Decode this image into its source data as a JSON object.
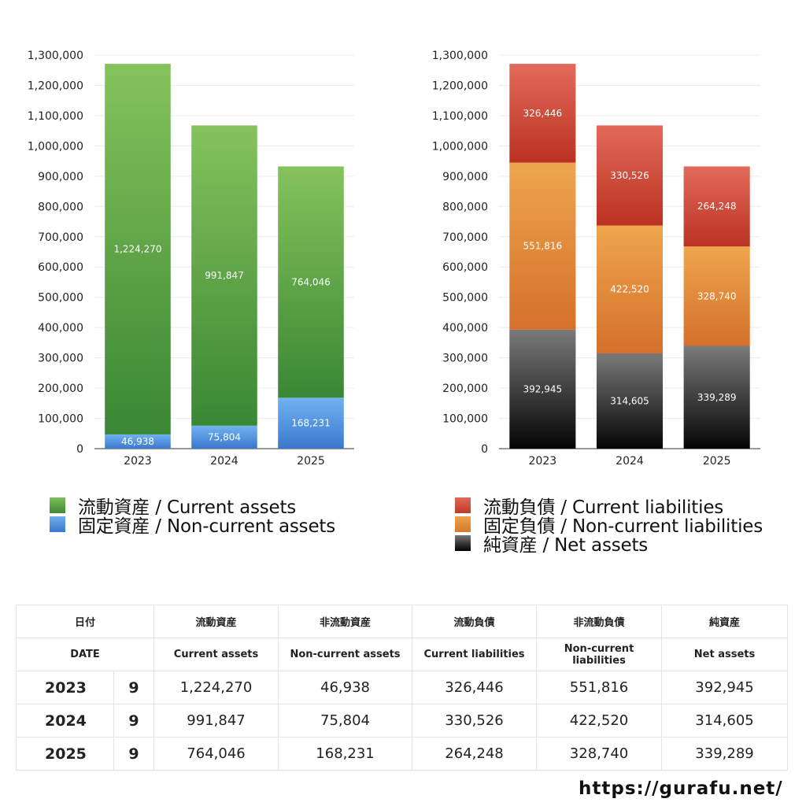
{
  "chart_data": [
    {
      "type": "bar",
      "stacked": true,
      "categories": [
        "2023",
        "2024",
        "2025"
      ],
      "series": [
        {
          "name": "固定資産 / Non-current assets",
          "values": [
            46938,
            75804,
            168231
          ],
          "color": "#4a8fdc"
        },
        {
          "name": "流動資産 / Current assets",
          "values": [
            1224270,
            991847,
            764046
          ],
          "color": "#4a9a3e"
        }
      ],
      "ylim": [
        0,
        1300000
      ],
      "yticks": [
        "0",
        "100,000",
        "200,000",
        "300,000",
        "400,000",
        "500,000",
        "600,000",
        "700,000",
        "800,000",
        "900,000",
        "1,000,000",
        "1,100,000",
        "1,200,000",
        "1,300,000"
      ],
      "grid": true,
      "legend_position": "bottom"
    },
    {
      "type": "bar",
      "stacked": true,
      "categories": [
        "2023",
        "2024",
        "2025"
      ],
      "series": [
        {
          "name": "純資産 / Net assets",
          "values": [
            392945,
            314605,
            339289
          ],
          "color": "#3a3a3a"
        },
        {
          "name": "固定負債 / Non-current liabilities",
          "values": [
            551816,
            422520,
            328740
          ],
          "color": "#e08a38"
        },
        {
          "name": "流動負債 / Current liabilities",
          "values": [
            326446,
            330526,
            264248
          ],
          "color": "#cf4a38"
        }
      ],
      "ylim": [
        0,
        1300000
      ],
      "yticks": [
        "0",
        "100,000",
        "200,000",
        "300,000",
        "400,000",
        "500,000",
        "600,000",
        "700,000",
        "800,000",
        "900,000",
        "1,000,000",
        "1,100,000",
        "1,200,000",
        "1,300,000"
      ],
      "grid": true,
      "legend_position": "bottom"
    }
  ],
  "legend_left": [
    {
      "label": "流動資産 / Current assets",
      "color": "#4a9a3e"
    },
    {
      "label": "固定資産 / Non-current assets",
      "color": "#4a8fdc"
    }
  ],
  "legend_right": [
    {
      "label": "流動負債 / Current liabilities",
      "color": "#cf4a38"
    },
    {
      "label": "固定負債 / Non-current liabilities",
      "color": "#e08a38"
    },
    {
      "label": "純資産 / Net assets",
      "color": "#2a2a2a"
    }
  ],
  "table": {
    "header_jp": [
      "日付",
      "流動資産",
      "非流動資産",
      "流動負債",
      "非流動負債",
      "純資産"
    ],
    "header_en": [
      "DATE",
      "Current assets",
      "Non-current assets",
      "Current liabilities",
      "Non-current liabilities",
      "Net assets"
    ],
    "rows": [
      {
        "year": "2023",
        "month": "9",
        "values": [
          "1,224,270",
          "46,938",
          "326,446",
          "551,816",
          "392,945"
        ]
      },
      {
        "year": "2024",
        "month": "9",
        "values": [
          "991,847",
          "75,804",
          "330,526",
          "422,520",
          "314,605"
        ]
      },
      {
        "year": "2025",
        "month": "9",
        "values": [
          "764,046",
          "168,231",
          "264,248",
          "328,740",
          "339,289"
        ]
      }
    ]
  },
  "footer_url": "https://gurafu.net/"
}
